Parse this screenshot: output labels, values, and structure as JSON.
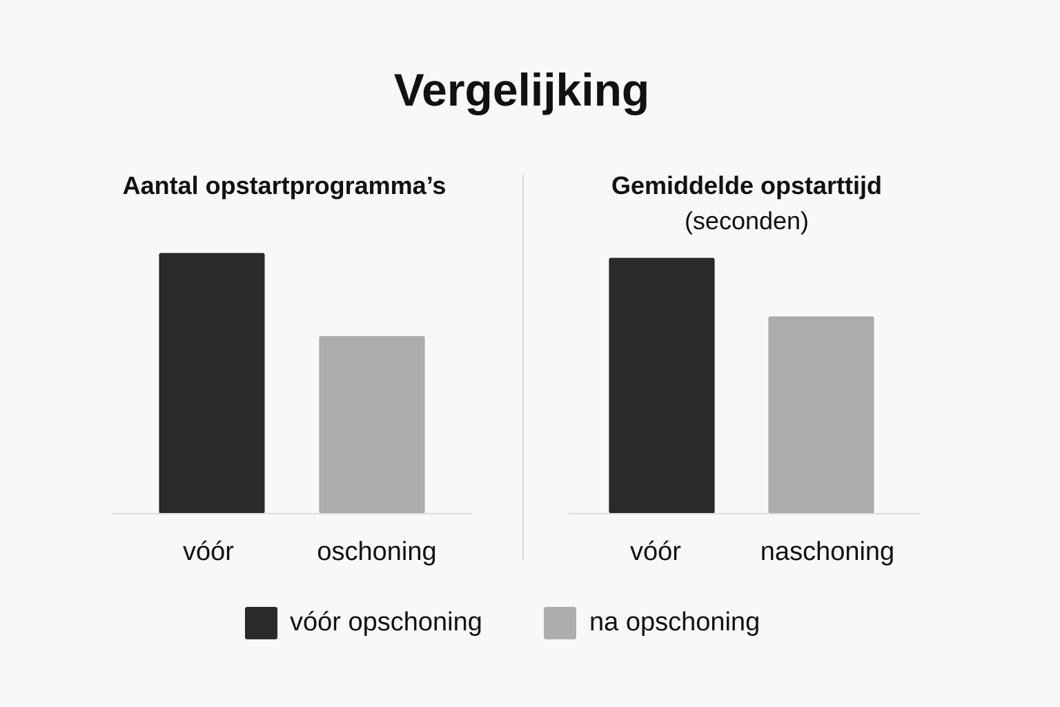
{
  "title": "Vergelijking",
  "colors": {
    "background": "#f8f8f8",
    "before": "#2a2a2a",
    "after": "#adadad",
    "axis": "#dddddd",
    "text": "#111111"
  },
  "legend": {
    "placement": "bottom-center",
    "items": [
      {
        "label": "vóór opschoning",
        "color": "#2a2a2a"
      },
      {
        "label": "na opschoning",
        "color": "#adadad"
      }
    ]
  },
  "chart_data": [
    {
      "type": "bar",
      "title": "Aantal opstartprogramma’s",
      "subtitle": "",
      "categories": [
        "vóór",
        "oschoning"
      ],
      "values": [
        1.0,
        0.68
      ],
      "colors": [
        "#2a2a2a",
        "#adadad"
      ],
      "ylim": [
        0,
        1.0
      ],
      "grid": false,
      "y_axis_labels": false
    },
    {
      "type": "bar",
      "title": "Gemiddelde opstarttijd",
      "subtitle": "(seconden)",
      "categories": [
        "vóór",
        "naschoning"
      ],
      "values": [
        1.0,
        0.77
      ],
      "colors": [
        "#2a2a2a",
        "#adadad"
      ],
      "ylim": [
        0,
        1.0
      ],
      "grid": false,
      "y_axis_labels": false
    }
  ]
}
